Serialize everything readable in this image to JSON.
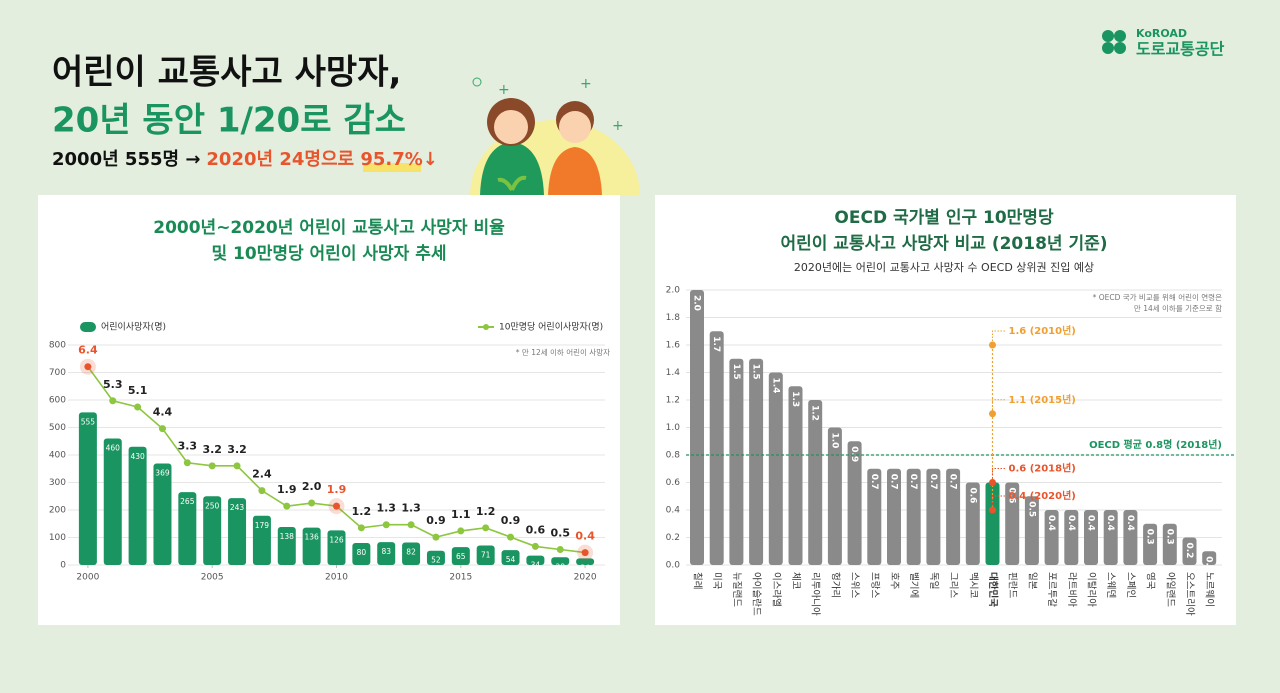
{
  "header": {
    "title": [
      "어린이 교통사고 사망자,",
      "20년 동안 1/20로 감소"
    ],
    "summary": [
      "2000년 555명 →",
      "2020년 24명으로 95.7%↓"
    ],
    "logo": {
      "brand": "KoROAD",
      "name": "도로교통공단"
    }
  },
  "chart_data": [
    {
      "type": "combo",
      "title": [
        "2000년~2020년 어린이 교통사고 사망자 비율",
        "및 10만명당 어린이 사망자 추세"
      ],
      "note": "* 만 12세 이하 어린이 사망자",
      "x": [
        2000,
        2001,
        2002,
        2003,
        2004,
        2005,
        2006,
        2007,
        2008,
        2009,
        2010,
        2011,
        2012,
        2013,
        2014,
        2015,
        2016,
        2017,
        2018,
        2019,
        2020
      ],
      "xlim": [
        1999.2,
        2020.8
      ],
      "xticks": [
        2000,
        2005,
        2010,
        2015,
        2020
      ],
      "ylim": [
        0,
        800
      ],
      "yticks": [
        0,
        100,
        200,
        300,
        400,
        500,
        600,
        700,
        800
      ],
      "y2lim": [
        0,
        7.1
      ],
      "grid": true,
      "series": [
        {
          "name": "어린이사망자(명)",
          "type": "bar",
          "color": "#1a9460",
          "values": [
            555,
            460,
            430,
            369,
            265,
            250,
            243,
            179,
            138,
            136,
            126,
            80,
            83,
            82,
            52,
            65,
            71,
            54,
            34,
            28,
            24
          ]
        },
        {
          "name": "10만명당 어린이사망자(명)",
          "type": "line",
          "axis": "y2",
          "color": "#8dc63f",
          "values": [
            6.4,
            5.3,
            5.1,
            4.4,
            3.3,
            3.2,
            3.2,
            2.4,
            1.9,
            2.0,
            1.9,
            1.2,
            1.3,
            1.3,
            0.9,
            1.1,
            1.2,
            0.9,
            0.6,
            0.5,
            0.4
          ],
          "value_labels": [
            "6.4",
            "5.3",
            "5.1",
            "4.4",
            "3.3",
            "3.2",
            "3.2",
            "2.4",
            "1.9",
            "2.0",
            "1.9",
            "1.2",
            "1.3",
            "1.3",
            "0.9",
            "1.1",
            "1.2",
            "0.9",
            "0.6",
            "0.5",
            "0.4"
          ],
          "point_colors": [
            "#e8552d",
            "#8dc63f",
            "#8dc63f",
            "#8dc63f",
            "#8dc63f",
            "#8dc63f",
            "#8dc63f",
            "#8dc63f",
            "#8dc63f",
            "#8dc63f",
            "#e8552d",
            "#8dc63f",
            "#8dc63f",
            "#8dc63f",
            "#8dc63f",
            "#8dc63f",
            "#8dc63f",
            "#8dc63f",
            "#8dc63f",
            "#8dc63f",
            "#e8552d"
          ]
        }
      ]
    },
    {
      "type": "bar",
      "title": [
        "OECD 국가별 인구 10만명당",
        "어린이 교통사고 사망자 비교 (2018년 기준)"
      ],
      "subtitle": "2020년에는 어린이 교통사고 사망자 수 OECD 상위권 진입 예상",
      "note": [
        "* OECD 국가 비교를 위해 어린이 연령은",
        "만 14세 이하를 기준으로 함"
      ],
      "categories": [
        "칠레",
        "미국",
        "뉴질랜드",
        "아이슬란드",
        "이스라엘",
        "체코",
        "리투아니아",
        "헝가리",
        "스위스",
        "프랑스",
        "호주",
        "벨기에",
        "독일",
        "그리스",
        "멕시코",
        "대한민국",
        "핀란드",
        "일본",
        "포르투갈",
        "라트비아",
        "이탈리아",
        "스웨덴",
        "스페인",
        "영국",
        "아일랜드",
        "오스트리아",
        "노르웨이"
      ],
      "values": [
        2.0,
        1.7,
        1.5,
        1.5,
        1.4,
        1.3,
        1.2,
        1.0,
        0.9,
        0.7,
        0.7,
        0.7,
        0.7,
        0.7,
        0.6,
        0.6,
        0.6,
        0.5,
        0.4,
        0.4,
        0.4,
        0.4,
        0.4,
        0.3,
        0.3,
        0.2,
        0.1
      ],
      "value_labels": [
        "2.0",
        "1.7",
        "1.5",
        "1.5",
        "1.4",
        "1.3",
        "1.2",
        "1.0",
        "0.9",
        "0.7",
        "0.7",
        "0.7",
        "0.7",
        "0.7",
        "0.6",
        null,
        "0.6",
        "0.5",
        "0.4",
        "0.4",
        "0.4",
        "0.4",
        "0.4",
        "0.3",
        "0.3",
        "0.2",
        "0.1"
      ],
      "color": "#8a8a8a",
      "colors": [
        "#8a8a8a",
        "#8a8a8a",
        "#8a8a8a",
        "#8a8a8a",
        "#8a8a8a",
        "#8a8a8a",
        "#8a8a8a",
        "#8a8a8a",
        "#8a8a8a",
        "#8a8a8a",
        "#8a8a8a",
        "#8a8a8a",
        "#8a8a8a",
        "#8a8a8a",
        "#8a8a8a",
        "#1a9460",
        "#8a8a8a",
        "#8a8a8a",
        "#8a8a8a",
        "#8a8a8a",
        "#8a8a8a",
        "#8a8a8a",
        "#8a8a8a",
        "#8a8a8a",
        "#8a8a8a",
        "#8a8a8a",
        "#8a8a8a"
      ],
      "ylim": [
        0,
        2
      ],
      "yticks": [
        {
          "value": 0,
          "label": "0.0"
        },
        0.2,
        0.4,
        0.6,
        0.8,
        {
          "value": 1,
          "label": "1.0"
        },
        1.2,
        1.4,
        1.6,
        1.8,
        {
          "value": 2,
          "label": "2.0"
        }
      ],
      "grid": true,
      "reference": {
        "value": 0.8,
        "label": "OECD 평균 0.8명 (2018년)",
        "color": "#1a9460"
      },
      "trend": {
        "category": "대한민국",
        "values": [
          1.6,
          1.1,
          0.6,
          0.4
        ],
        "labels": [
          "1.6 (2010년)",
          "1.1 (2015년)",
          "0.6 (2018년)",
          "0.4 (2020년)"
        ],
        "colors": [
          "#f0a030",
          "#f0a030",
          "#e8552d",
          "#e8552d"
        ]
      }
    }
  ]
}
